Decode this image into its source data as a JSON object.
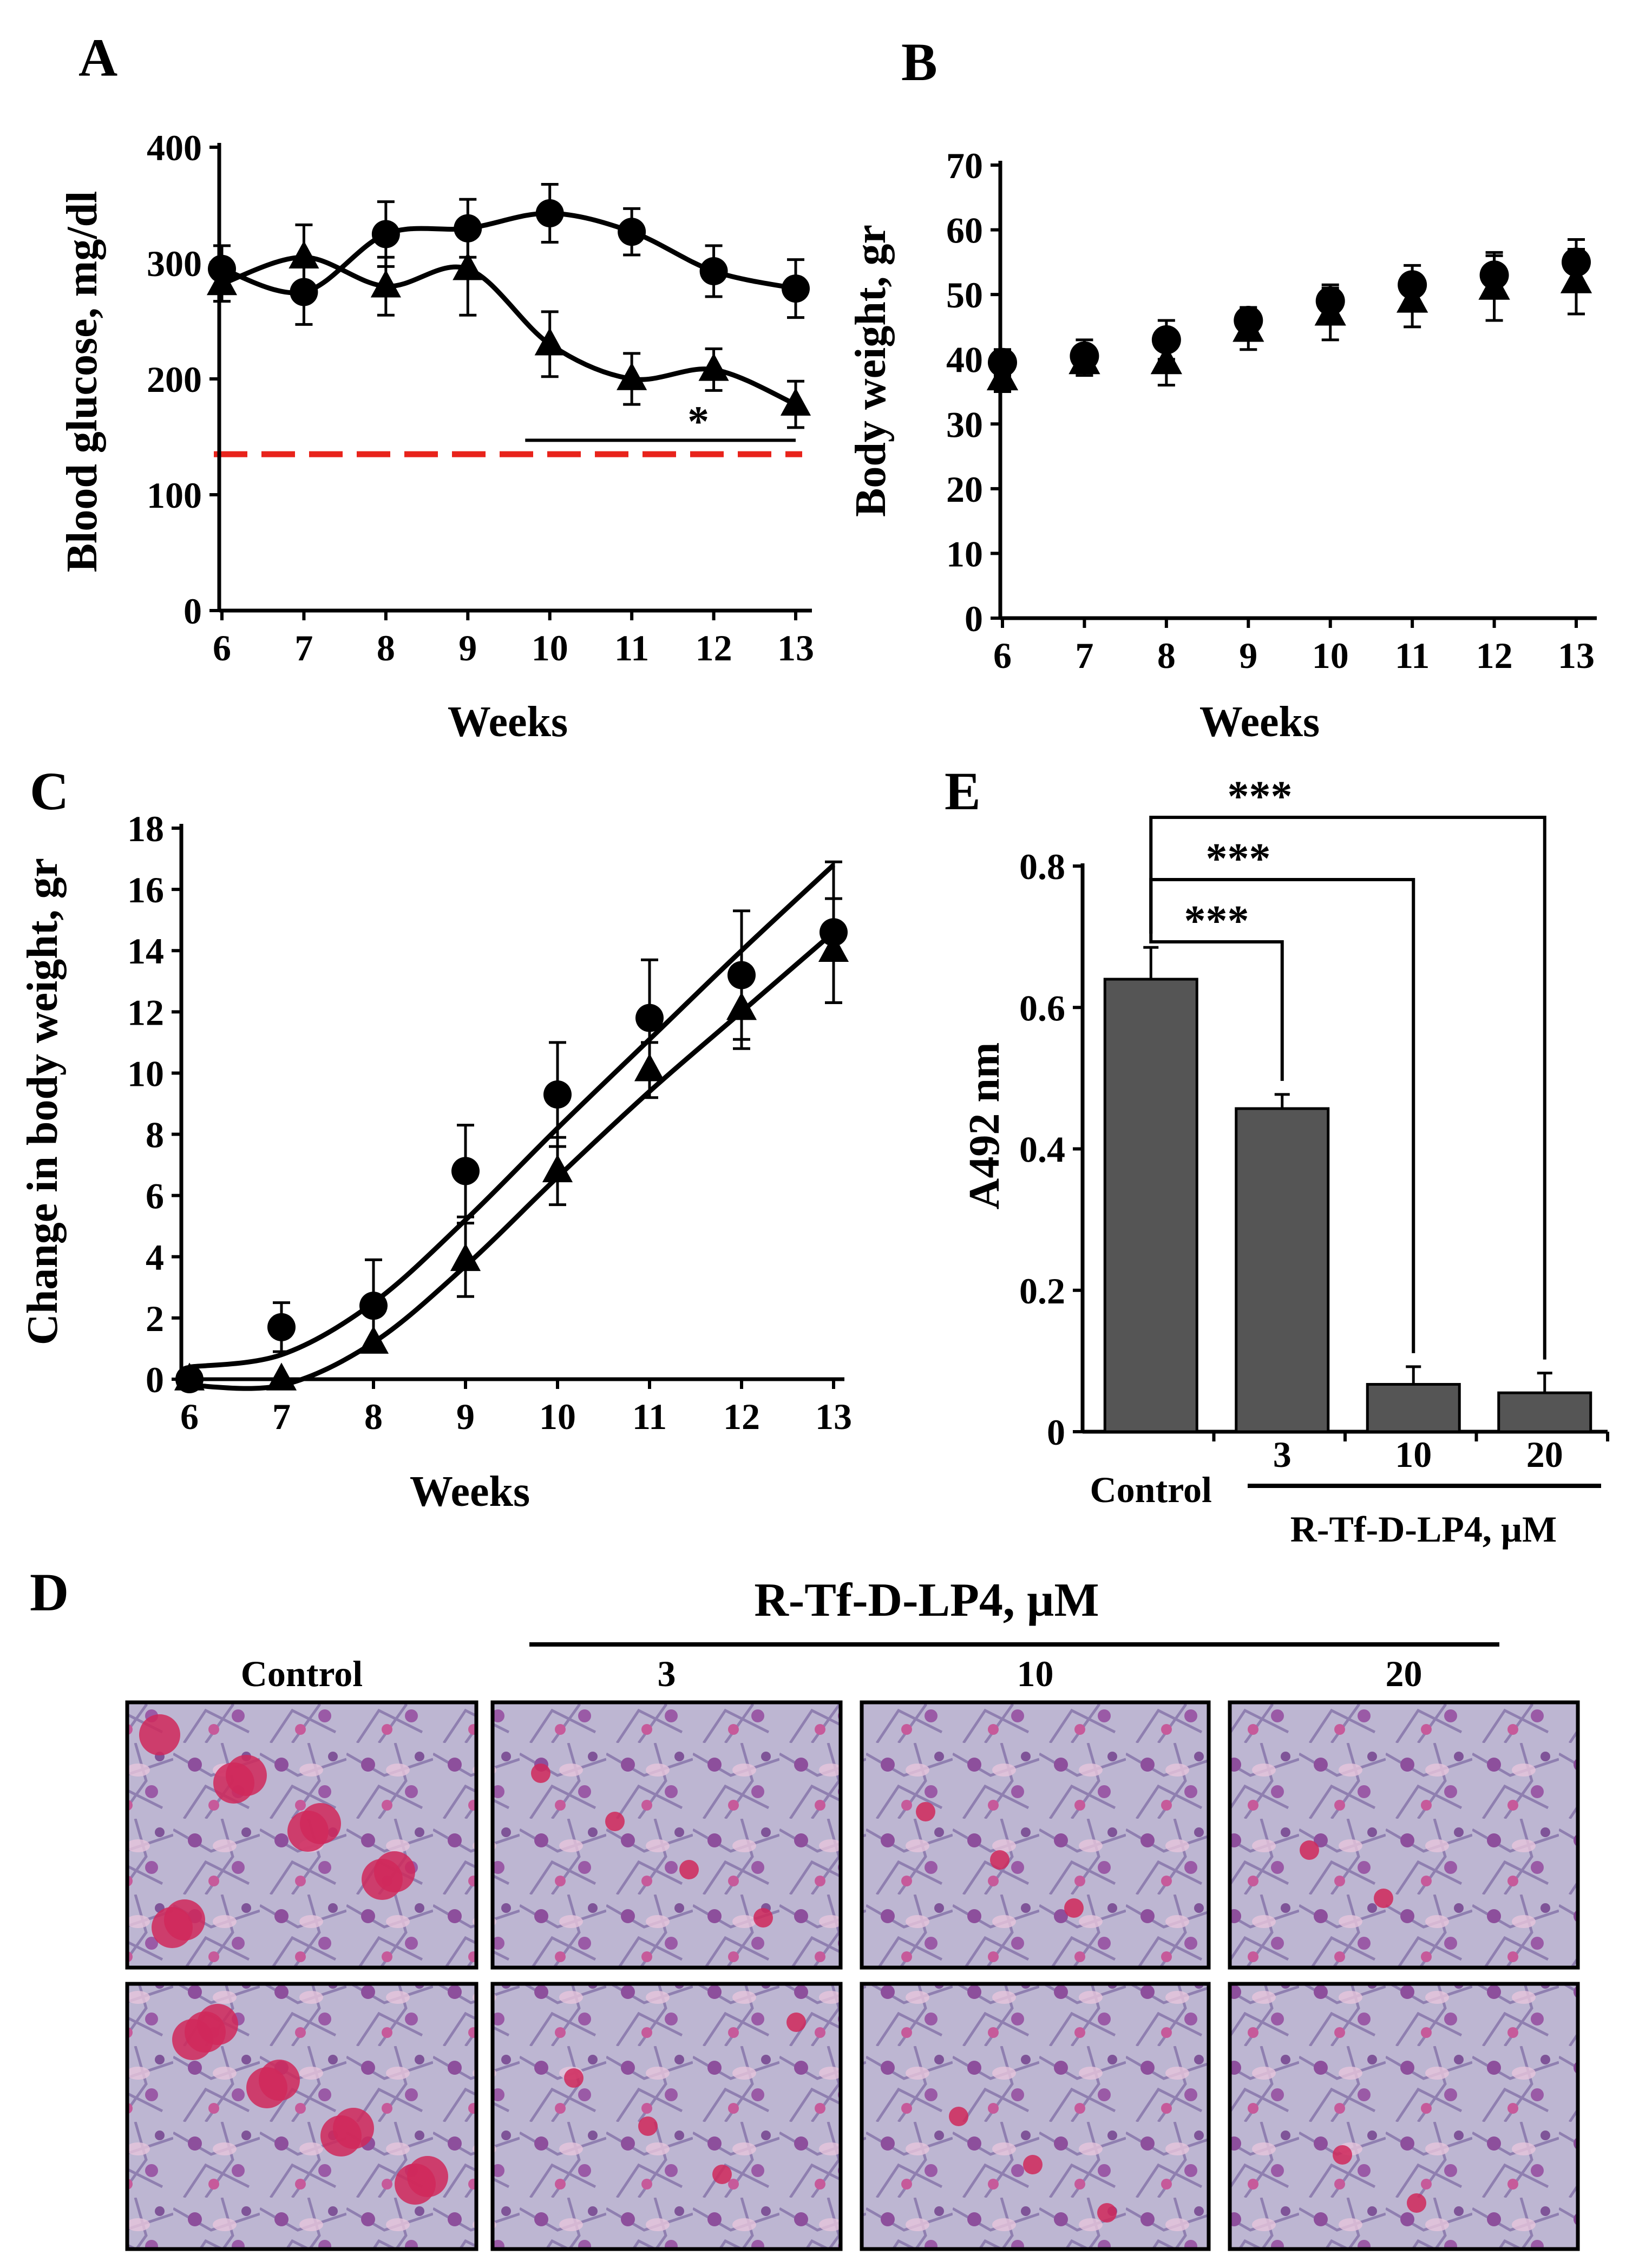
{
  "panel_labels": {
    "A": "A",
    "B": "B",
    "C": "C",
    "D": "D",
    "E": "E"
  },
  "colors": {
    "reference_line": "#e8231b",
    "bars": "#555555",
    "photo_stain": "#d0285a",
    "photo_bg": "#b9b4cf"
  },
  "chart_data": [
    {
      "id": "A",
      "type": "line",
      "xlabel": "Weeks",
      "ylabel": "Blood glucose, mg/dl",
      "ylim": [
        0,
        400
      ],
      "yticks": [
        0,
        100,
        200,
        300,
        400
      ],
      "x": [
        6,
        7,
        8,
        9,
        10,
        11,
        12,
        13
      ],
      "series": [
        {
          "name": "circle",
          "marker": "circle",
          "values": [
            295,
            275,
            325,
            330,
            343,
            327,
            293,
            278
          ],
          "errors": [
            20,
            28,
            28,
            25,
            25,
            20,
            22,
            25
          ]
        },
        {
          "name": "triangle",
          "marker": "triangle",
          "values": [
            282,
            305,
            280,
            295,
            230,
            200,
            208,
            178
          ],
          "errors": [
            15,
            28,
            25,
            40,
            28,
            22,
            18,
            20
          ]
        }
      ],
      "reference_line": {
        "y": 135,
        "style": "dashed",
        "color": "red"
      },
      "annotation": {
        "text": "*",
        "x_from": 9.7,
        "x_to": 13,
        "y": 147
      }
    },
    {
      "id": "B",
      "type": "scatter",
      "xlabel": "Weeks",
      "ylabel": "Body weight, gr",
      "ylim": [
        0,
        70
      ],
      "yticks": [
        0,
        10,
        20,
        30,
        40,
        50,
        60,
        70
      ],
      "x": [
        6,
        7,
        8,
        9,
        10,
        11,
        12,
        13
      ],
      "series": [
        {
          "name": "circle",
          "marker": "circle",
          "values": [
            39.5,
            40.5,
            43,
            46,
            49,
            51.5,
            53,
            55
          ],
          "errors": [
            2,
            2.5,
            3,
            2,
            2.5,
            3,
            3.5,
            3.5
          ]
        },
        {
          "name": "triangle",
          "marker": "triangle",
          "values": [
            37,
            39.5,
            39.5,
            44.5,
            47,
            49,
            51,
            52
          ],
          "errors": [
            2,
            2,
            3.5,
            3,
            4,
            4,
            5,
            5
          ]
        }
      ]
    },
    {
      "id": "C",
      "type": "line",
      "xlabel": "Weeks",
      "ylabel": "Change in body weight, gr",
      "ylim": [
        0,
        18
      ],
      "yticks": [
        0,
        2,
        4,
        6,
        8,
        10,
        12,
        14,
        16,
        18
      ],
      "x": [
        6,
        7,
        8,
        9,
        10,
        11,
        12,
        13
      ],
      "series": [
        {
          "name": "circle",
          "marker": "circle",
          "values": [
            0,
            1.7,
            2.4,
            6.8,
            9.3,
            11.8,
            13.2,
            14.6
          ],
          "errors": [
            0,
            0.8,
            1.5,
            1.5,
            1.7,
            1.9,
            2.1,
            2.3
          ],
          "fit": [
            0.4,
            0.8,
            2.5,
            5.2,
            8.2,
            11.1,
            14,
            16.8
          ]
        },
        {
          "name": "triangle",
          "marker": "triangle",
          "values": [
            0,
            0,
            1.2,
            3.9,
            6.8,
            10.1,
            12.1,
            14
          ],
          "errors": [
            0,
            0,
            0,
            1.2,
            1.1,
            0.9,
            1.3,
            1.7
          ],
          "fit": [
            -0.2,
            -0.2,
            1.2,
            3.7,
            6.6,
            9.4,
            12,
            14.6
          ]
        }
      ]
    },
    {
      "id": "E",
      "type": "bar",
      "ylabel": "A492 nm",
      "ylim": [
        0,
        0.8
      ],
      "yticks": [
        "0",
        "0.2",
        "0.4",
        "0.6",
        "0.8"
      ],
      "categories": [
        "Control",
        "3",
        "10",
        "20"
      ],
      "values": [
        0.64,
        0.457,
        0.067,
        0.055
      ],
      "errors": [
        0.045,
        0.02,
        0.025,
        0.028
      ],
      "group_label": "R-Tf-D-LP4, µM",
      "significance": [
        {
          "from": "Control",
          "to": "3",
          "text": "***"
        },
        {
          "from": "Control",
          "to": "10",
          "text": "***"
        },
        {
          "from": "Control",
          "to": "20",
          "text": "***"
        }
      ]
    }
  ],
  "panel_d": {
    "title": "R-Tf-D-LP4, µM",
    "columns": [
      "Control",
      "3",
      "10",
      "20"
    ],
    "rows": 2
  }
}
